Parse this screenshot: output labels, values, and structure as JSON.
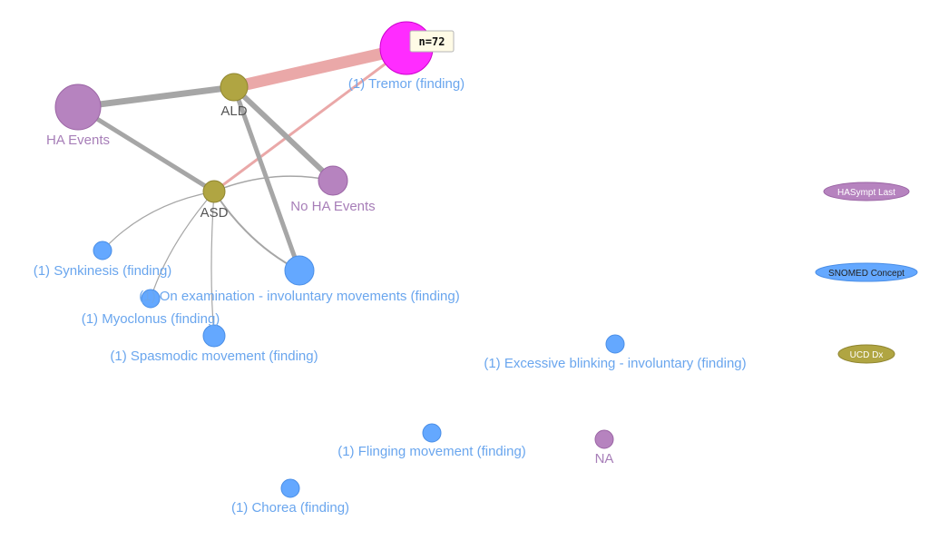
{
  "colors": {
    "snomed": "#64a8ff",
    "snomed_stroke": "#4a8ee6",
    "ucd": "#b0a542",
    "ucd_stroke": "#8f8530",
    "hasympt": "#b683bf",
    "hasympt_stroke": "#9a64a4",
    "highlight": "#ff2cff",
    "edge_gray": "#a6a6a6",
    "edge_pink": "#eaa8a8",
    "label_blue": "#6aa6ee",
    "label_purple": "#a77eb8"
  },
  "nodes": {
    "tremor": {
      "label": "(1) Tremor (finding)",
      "category": "SNOMED Concept",
      "selected": true
    },
    "ald": {
      "label": "ALD",
      "category": "UCD Dx"
    },
    "ha_events": {
      "label": "HA Events",
      "category": "HASympt Last"
    },
    "no_ha_events": {
      "label": "No HA Events",
      "category": "HASympt Last"
    },
    "asd": {
      "label": "ASD",
      "category": "UCD Dx"
    },
    "synkinesis": {
      "label": "(1) Synkinesis (finding)",
      "category": "SNOMED Concept"
    },
    "on_exam": {
      "label": "(1) On examination - involuntary movements (finding)",
      "category": "SNOMED Concept"
    },
    "myoclonus": {
      "label": "(1) Myoclonus (finding)",
      "category": "SNOMED Concept"
    },
    "spasmodic": {
      "label": "(1) Spasmodic movement (finding)",
      "category": "SNOMED Concept"
    },
    "blinking": {
      "label": "(1) Excessive blinking - involuntary (finding)",
      "category": "SNOMED Concept"
    },
    "flinging": {
      "label": "(1) Flinging movement (finding)",
      "category": "SNOMED Concept"
    },
    "na": {
      "label": "NA",
      "category": "HASympt Last"
    },
    "chorea": {
      "label": "(1) Chorea (finding)",
      "category": "SNOMED Concept"
    }
  },
  "tooltip": {
    "text": "n=72"
  },
  "legend": {
    "hasympt": "HASympt Last",
    "snomed": "SNOMED Concept",
    "ucd": "UCD Dx"
  }
}
